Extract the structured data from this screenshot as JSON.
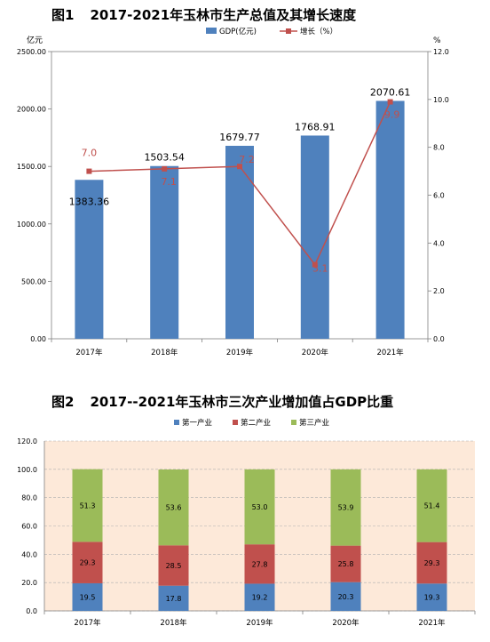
{
  "figure1": {
    "label": "图1",
    "title": "2017-2021年玉林市生产总值及其增长速度"
  },
  "figure2": {
    "label": "图2",
    "title": "2017--2021年玉林市三次产业增加值占GDP比重"
  },
  "colors": {
    "gdp_bar": "#4f81bd",
    "growth_line": "#c0504d",
    "primary": "#4f81bd",
    "secondary": "#c0504d",
    "tertiary": "#9bbb59",
    "plot2_bg": "#fde9d9"
  },
  "chart_data": [
    {
      "type": "bar",
      "categories": [
        "2017年",
        "2018年",
        "2019年",
        "2020年",
        "2021年"
      ],
      "y_unit_label": "亿元",
      "y2_unit_label": "%",
      "ylim": [
        0,
        2500
      ],
      "y2lim": [
        0,
        12
      ],
      "y_ticks": [
        "0.00",
        "500.00",
        "1000.00",
        "1500.00",
        "2000.00",
        "2500.00"
      ],
      "y2_ticks": [
        "0.0",
        "2.0",
        "4.0",
        "6.0",
        "8.0",
        "10.0",
        "12.0"
      ],
      "legend_position": "top",
      "series": [
        {
          "name": "GDP(亿元)",
          "kind": "bar",
          "axis": "left",
          "values": [
            1383.36,
            1503.54,
            1679.77,
            1768.91,
            2070.61
          ],
          "labels": [
            "1383.36",
            "1503.54",
            "1679.77",
            "1768.91",
            "2070.61"
          ]
        },
        {
          "name": "增长（%）",
          "kind": "line",
          "axis": "right",
          "values": [
            7.0,
            7.1,
            7.2,
            3.1,
            9.9
          ],
          "labels": [
            "7.0",
            "7.1",
            "7.2",
            "3.1",
            "9.9"
          ]
        }
      ]
    },
    {
      "type": "bar",
      "stacked": true,
      "categories": [
        "2017年",
        "2018年",
        "2019年",
        "2020年",
        "2021年"
      ],
      "ylim": [
        0,
        120
      ],
      "y_ticks": [
        "0.0",
        "20.0",
        "40.0",
        "60.0",
        "80.0",
        "100.0",
        "120.0"
      ],
      "legend_position": "top",
      "series": [
        {
          "name": "第一产业",
          "values": [
            19.5,
            17.8,
            19.2,
            20.3,
            19.3
          ]
        },
        {
          "name": "第二产业",
          "values": [
            29.3,
            28.5,
            27.8,
            25.8,
            29.3
          ]
        },
        {
          "name": "第三产业",
          "values": [
            51.3,
            53.6,
            53.0,
            53.9,
            51.4
          ]
        }
      ]
    }
  ]
}
